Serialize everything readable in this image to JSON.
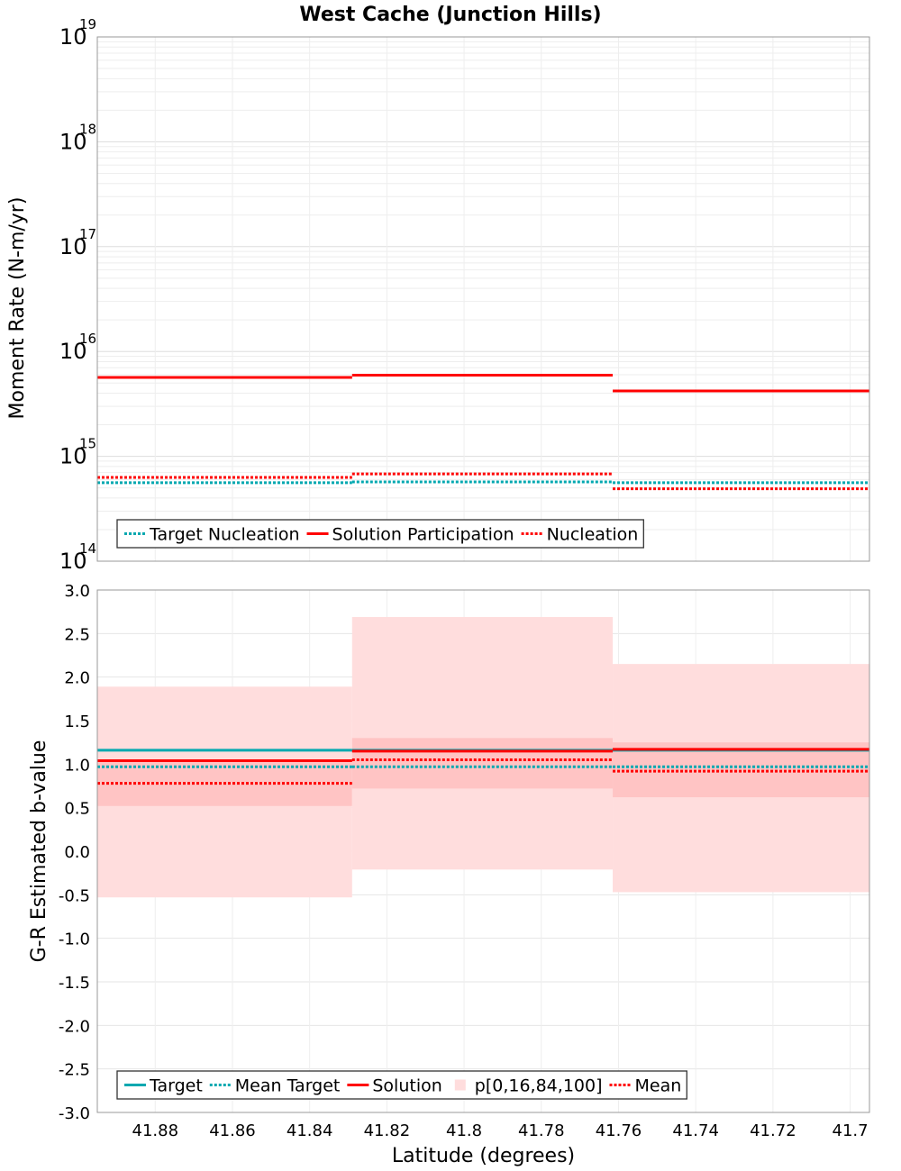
{
  "title": "West Cache (Junction Hills)",
  "chart_data": [
    {
      "type": "line",
      "ylabel": "Moment Rate (N-m/yr)",
      "yscale": "log",
      "ylim": [
        100000000000000.0,
        1e+19
      ],
      "ytick_base": "10",
      "yticks_exp": [
        "14",
        "15",
        "16",
        "17",
        "18",
        "19"
      ],
      "xlim": [
        41.895,
        41.695
      ],
      "grid": true,
      "legend_position": "bottom-left",
      "x_edges": [
        41.895,
        41.829,
        41.7615,
        41.695
      ],
      "series": [
        {
          "name": "Target Nucleation",
          "color": "#00a8b0",
          "style": "dotted",
          "values": [
            560000000000000.0,
            570000000000000.0,
            560000000000000.0
          ]
        },
        {
          "name": "Solution Participation",
          "color": "#ff0000",
          "style": "solid",
          "values": [
            5650000000000000.0,
            5950000000000000.0,
            4200000000000000.0
          ]
        },
        {
          "name": "Nucleation",
          "color": "#ff0000",
          "style": "dotted",
          "values": [
            630000000000000.0,
            680000000000000.0,
            490000000000000.0
          ]
        }
      ]
    },
    {
      "type": "line",
      "xlabel": "Latitude (degrees)",
      "ylabel": "G-R Estimated b-value",
      "ylim": [
        -3.0,
        3.0
      ],
      "xlim": [
        41.895,
        41.695
      ],
      "yticks": [
        "-3.0",
        "-2.5",
        "-2.0",
        "-1.5",
        "-1.0",
        "-0.5",
        "0.0",
        "0.5",
        "1.0",
        "1.5",
        "2.0",
        "2.5",
        "3.0"
      ],
      "xticks": [
        "41.88",
        "41.86",
        "41.84",
        "41.82",
        "41.8",
        "41.78",
        "41.76",
        "41.74",
        "41.72",
        "41.7"
      ],
      "grid": true,
      "legend_position": "bottom-left",
      "x_edges": [
        41.895,
        41.829,
        41.7615,
        41.695
      ],
      "band_outer": {
        "low": [
          -0.53,
          -0.21,
          -0.47
        ],
        "high": [
          1.89,
          2.69,
          2.15
        ]
      },
      "band_inner": {
        "low": [
          0.52,
          0.72,
          0.62
        ],
        "high": [
          1.04,
          1.3,
          1.25
        ]
      },
      "band_colors": {
        "outer": "#ffdddd",
        "inner": "#ffc4c4"
      },
      "series": [
        {
          "name": "Target",
          "color": "#00a8b0",
          "style": "solid",
          "values": [
            1.16,
            1.16,
            1.16
          ]
        },
        {
          "name": "Mean Target",
          "color": "#00a8b0",
          "style": "dotted",
          "values": [
            0.97,
            0.97,
            0.97
          ]
        },
        {
          "name": "Solution",
          "color": "#ff0000",
          "style": "solid",
          "values": [
            1.04,
            1.15,
            1.17
          ]
        },
        {
          "name": "p[0,16,84,100]",
          "color": "#ffdddd",
          "style": "band"
        },
        {
          "name": "Mean",
          "color": "#ff0000",
          "style": "dotted",
          "values": [
            0.78,
            1.05,
            0.92
          ]
        }
      ]
    }
  ]
}
